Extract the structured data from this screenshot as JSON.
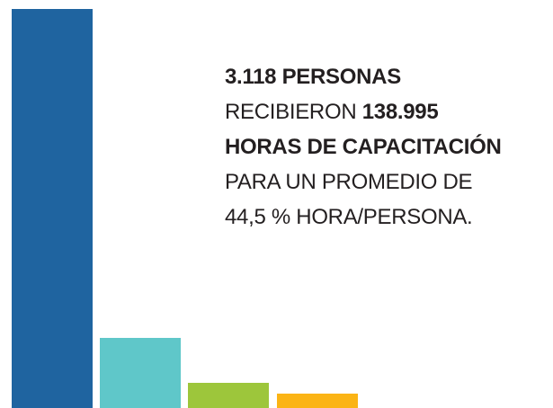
{
  "lines": [
    [
      {
        "text": "3.118 PERSONAS",
        "bold": true
      }
    ],
    [
      {
        "text": "RECIBIERON ",
        "bold": false
      },
      {
        "text": "138.995",
        "bold": true
      }
    ],
    [
      {
        "text": "HORAS DE CAPACITACIÓN",
        "bold": true
      }
    ],
    [
      {
        "text": "PARA UN PROMEDIO DE",
        "bold": false
      }
    ],
    [
      {
        "text": "44,5 % HORA/PERSONA.",
        "bold": false
      }
    ]
  ]
}
